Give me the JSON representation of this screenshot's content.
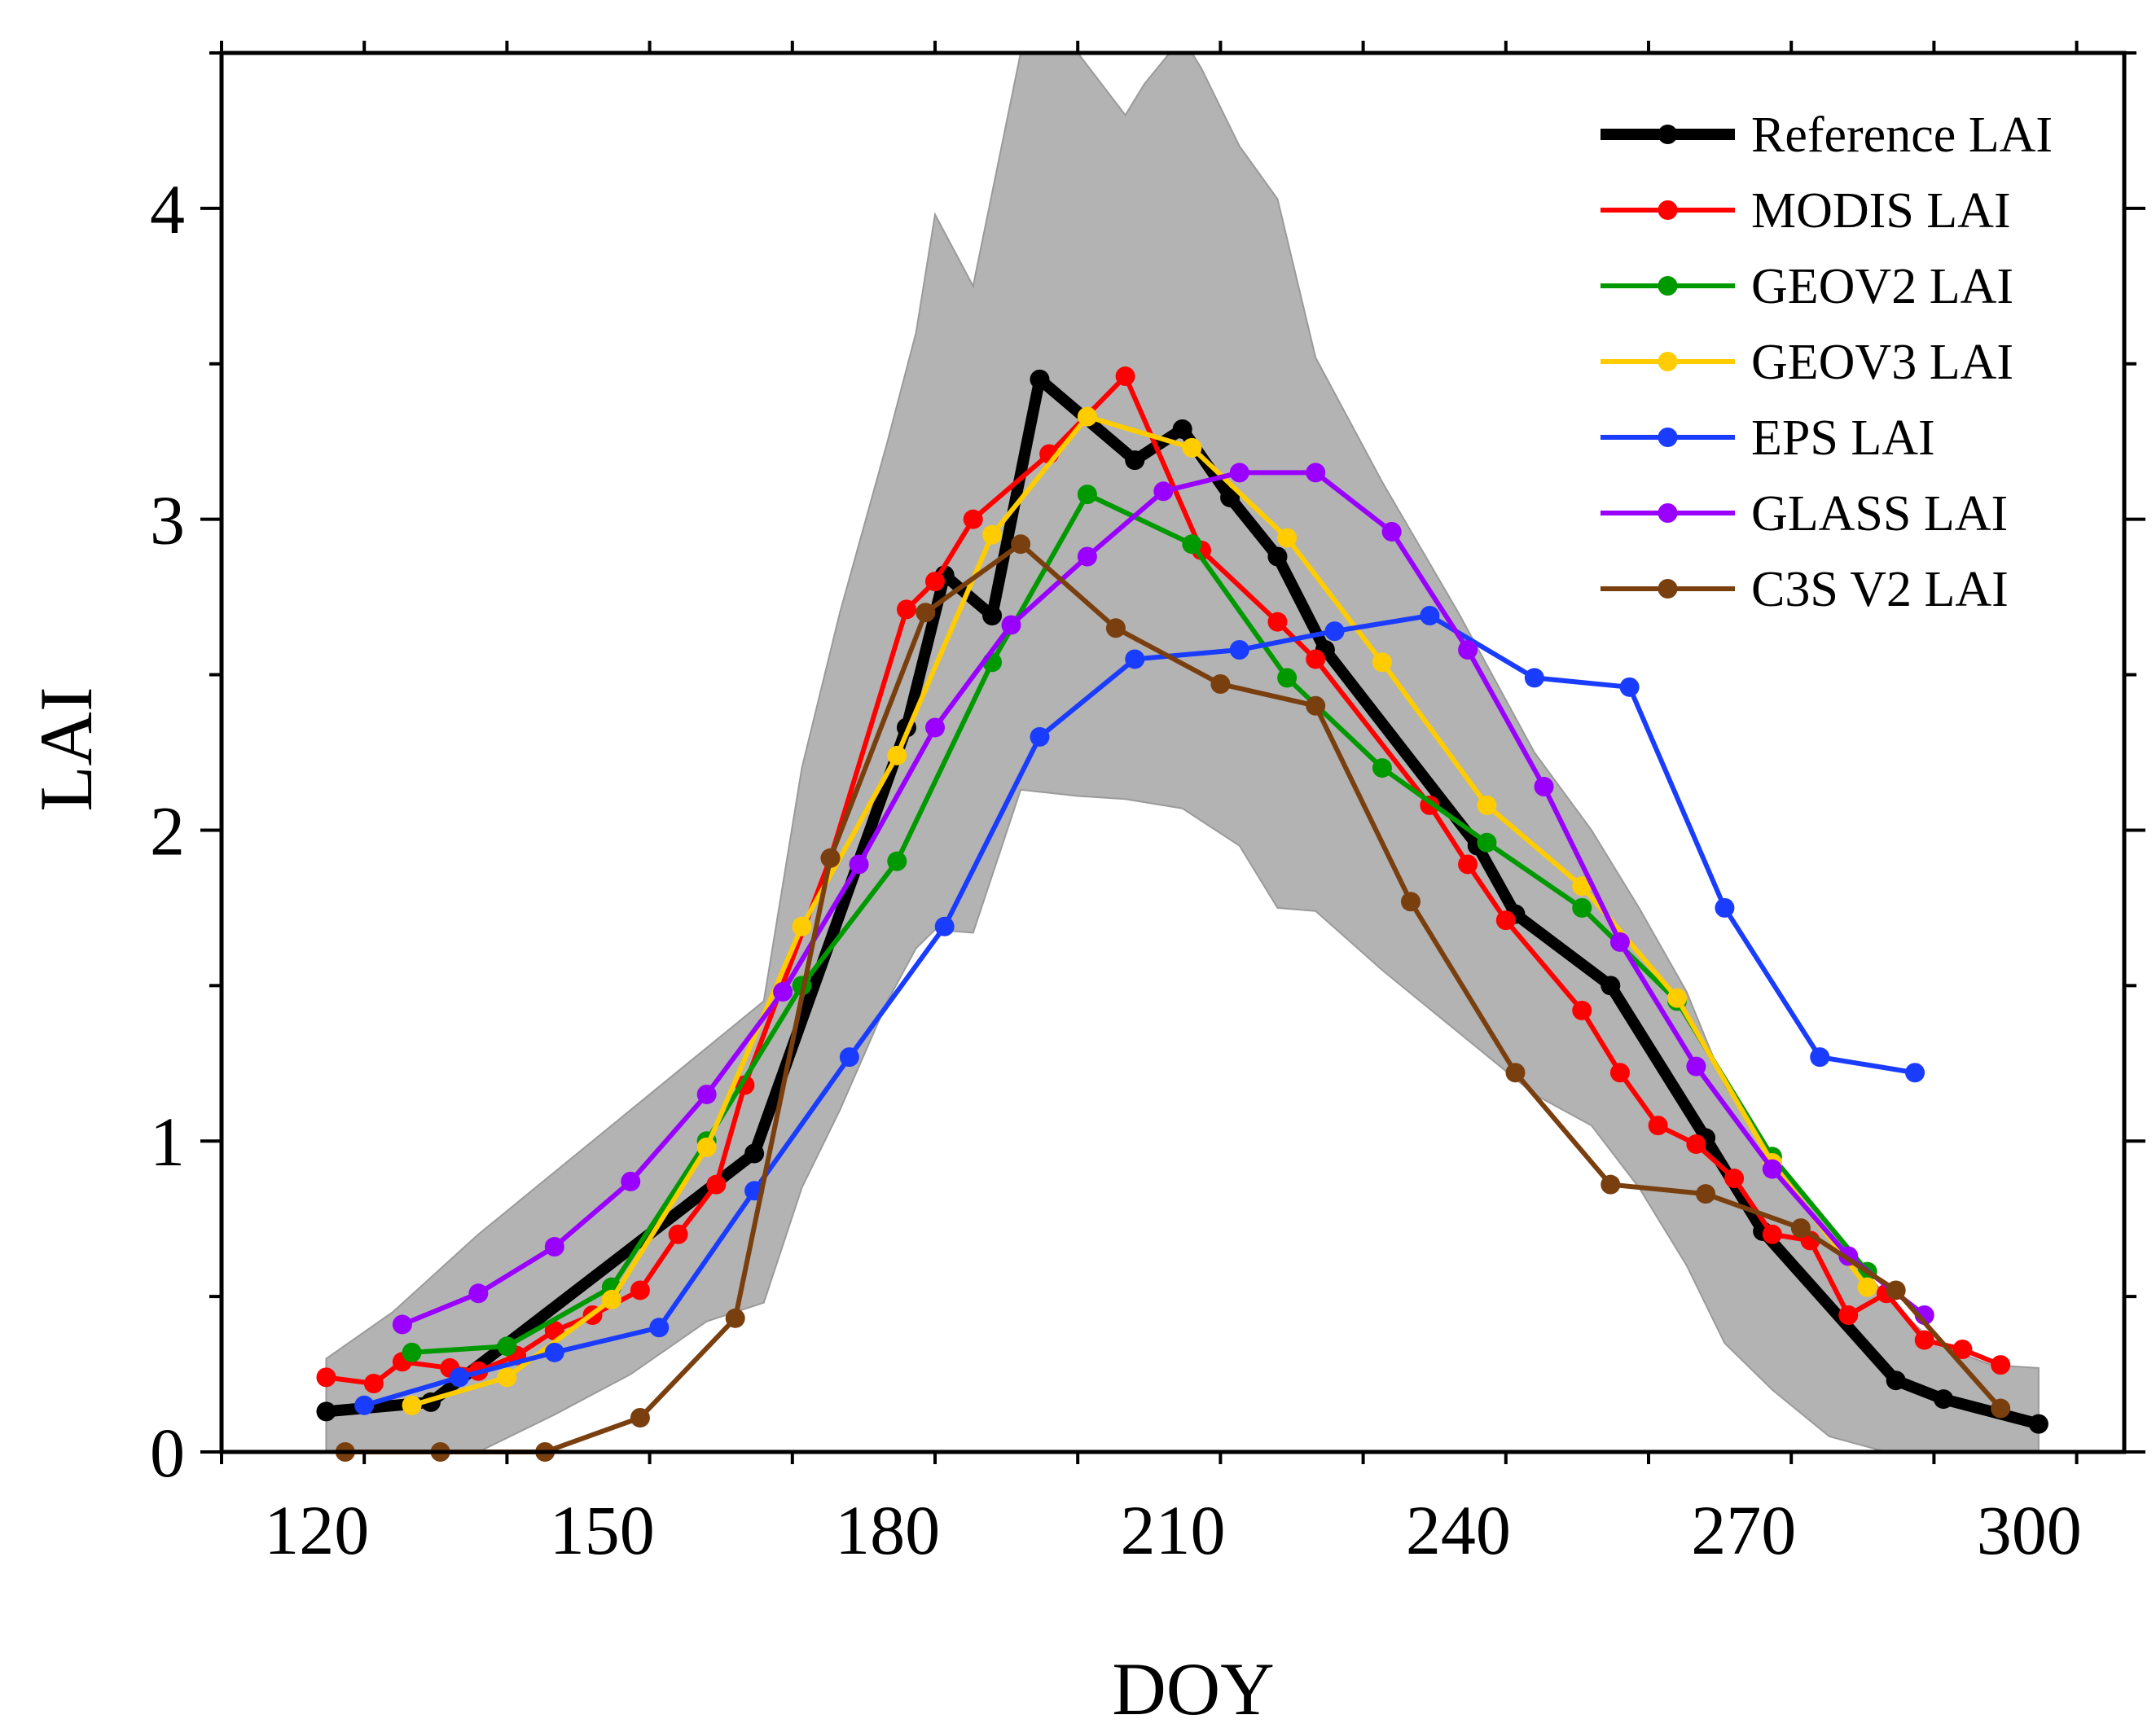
{
  "chart_data": {
    "type": "line",
    "title": "",
    "xlabel": "DOY",
    "ylabel": "LAI",
    "xlim": [
      110,
      310
    ],
    "ylim": [
      0,
      4.5
    ],
    "xticks": [
      120,
      150,
      180,
      210,
      240,
      270,
      300
    ],
    "yticks": [
      0,
      1,
      2,
      3,
      4
    ],
    "x_tick_labels": [
      "120",
      "150",
      "180",
      "210",
      "240",
      "270",
      "300"
    ],
    "y_tick_labels": [
      "0",
      "1",
      "2",
      "3",
      "4"
    ],
    "grid": false,
    "legend_position": "top-right",
    "band": {
      "name": "range",
      "color": "#b3b3b3",
      "x": [
        121,
        128,
        137,
        145,
        153,
        161,
        167,
        171,
        175,
        180,
        183,
        185,
        189,
        194,
        197,
        200,
        205,
        207,
        211,
        213,
        217,
        221,
        225,
        232,
        240,
        248,
        254,
        259,
        264,
        268,
        273,
        279,
        285,
        290,
        296,
        301
      ],
      "upper": [
        0.3,
        0.45,
        0.7,
        0.9,
        1.1,
        1.3,
        1.45,
        2.2,
        2.7,
        3.25,
        3.6,
        3.98,
        3.75,
        4.5,
        4.6,
        4.5,
        4.3,
        4.4,
        4.55,
        4.45,
        4.2,
        4.03,
        3.52,
        3.12,
        2.7,
        2.25,
        2.0,
        1.75,
        1.48,
        1.18,
        0.95,
        0.72,
        0.5,
        0.35,
        0.28,
        0.27
      ],
      "lower": [
        0.0,
        0.0,
        0.0,
        0.12,
        0.25,
        0.42,
        0.48,
        0.85,
        1.1,
        1.45,
        1.62,
        1.68,
        1.67,
        2.13,
        2.12,
        2.11,
        2.1,
        2.09,
        2.07,
        2.03,
        1.95,
        1.75,
        1.74,
        1.55,
        1.35,
        1.15,
        1.05,
        0.85,
        0.6,
        0.35,
        0.2,
        0.05,
        0.0,
        0.0,
        0.0,
        0.0
      ]
    },
    "series": [
      {
        "name": "Reference LAI",
        "color": "#000000",
        "line_width": 14,
        "marker_r": 12,
        "x": [
          121,
          132,
          166,
          182,
          186,
          191,
          196,
          206,
          211,
          216,
          221,
          226,
          242,
          246,
          256,
          266,
          272,
          286,
          291,
          301
        ],
        "y": [
          0.13,
          0.16,
          0.96,
          2.33,
          2.82,
          2.69,
          3.45,
          3.19,
          3.29,
          3.07,
          2.88,
          2.58,
          1.95,
          1.73,
          1.5,
          1.01,
          0.71,
          0.23,
          0.17,
          0.09
        ]
      },
      {
        "name": "MODIS LAI",
        "color": "#ff0000",
        "line_width": 6,
        "marker_r": 12,
        "x": [
          121,
          126,
          129,
          134,
          137,
          141,
          145,
          149,
          154,
          158,
          162,
          165,
          174,
          182,
          185,
          189,
          197,
          205,
          213,
          221,
          225,
          237,
          241,
          245,
          253,
          257,
          261,
          265,
          269,
          273,
          277,
          281,
          285,
          289,
          293,
          297
        ],
        "y": [
          0.24,
          0.22,
          0.29,
          0.27,
          0.26,
          0.31,
          0.39,
          0.44,
          0.52,
          0.7,
          0.86,
          1.18,
          1.91,
          2.71,
          2.8,
          3.0,
          3.21,
          3.46,
          2.9,
          2.67,
          2.55,
          2.08,
          1.89,
          1.71,
          1.42,
          1.22,
          1.05,
          0.99,
          0.88,
          0.7,
          0.68,
          0.44,
          0.51,
          0.36,
          0.33,
          0.28
        ]
      },
      {
        "name": "GEOV2 LAI",
        "color": "#009900",
        "line_width": 6,
        "marker_r": 12,
        "x": [
          130,
          140,
          151,
          161,
          171,
          181,
          191,
          201,
          212,
          222,
          232,
          243,
          253,
          263,
          273,
          283
        ],
        "y": [
          0.32,
          0.34,
          0.53,
          1.0,
          1.5,
          1.9,
          2.54,
          3.08,
          2.92,
          2.49,
          2.2,
          1.96,
          1.75,
          1.45,
          0.95,
          0.58
        ]
      },
      {
        "name": "GEOV3 LAI",
        "color": "#ffcc00",
        "line_width": 6,
        "marker_r": 12,
        "x": [
          130,
          140,
          151,
          161,
          171,
          181,
          191,
          201,
          212,
          222,
          232,
          243,
          253,
          263,
          273,
          283
        ],
        "y": [
          0.15,
          0.24,
          0.49,
          0.98,
          1.69,
          2.24,
          2.95,
          3.33,
          3.23,
          2.94,
          2.54,
          2.08,
          1.82,
          1.46,
          0.93,
          0.53
        ]
      },
      {
        "name": "EPS LAI",
        "color": "#1a3cff",
        "line_width": 6,
        "marker_r": 12,
        "x": [
          125,
          135,
          145,
          156,
          166,
          176,
          186,
          196,
          206,
          217,
          227,
          237,
          248,
          258,
          268,
          278,
          288
        ],
        "y": [
          0.15,
          0.24,
          0.32,
          0.4,
          0.84,
          1.27,
          1.69,
          2.3,
          2.55,
          2.58,
          2.64,
          2.69,
          2.49,
          2.46,
          1.75,
          1.27,
          1.22
        ]
      },
      {
        "name": "GLASS LAI",
        "color": "#9900ff",
        "line_width": 6,
        "marker_r": 12,
        "x": [
          129,
          137,
          145,
          153,
          161,
          169,
          177,
          185,
          193,
          201,
          209,
          217,
          225,
          233,
          241,
          249,
          257,
          265,
          273,
          281,
          289
        ],
        "y": [
          0.41,
          0.51,
          0.66,
          0.87,
          1.15,
          1.48,
          1.89,
          2.33,
          2.66,
          2.88,
          3.09,
          3.15,
          3.15,
          2.96,
          2.58,
          2.14,
          1.64,
          1.24,
          0.91,
          0.63,
          0.44
        ]
      },
      {
        "name": "C3S V2 LAI",
        "color": "#7a3f0f",
        "line_width": 6,
        "marker_r": 12,
        "x": [
          123,
          133,
          144,
          154,
          164,
          174,
          184,
          194,
          204,
          215,
          225,
          235,
          246,
          256,
          266,
          276,
          286,
          297
        ],
        "y": [
          0.0,
          0.0,
          0.0,
          0.11,
          0.43,
          1.91,
          2.7,
          2.92,
          2.65,
          2.47,
          2.4,
          1.77,
          1.22,
          0.86,
          0.83,
          0.72,
          0.52,
          0.14
        ]
      }
    ]
  }
}
